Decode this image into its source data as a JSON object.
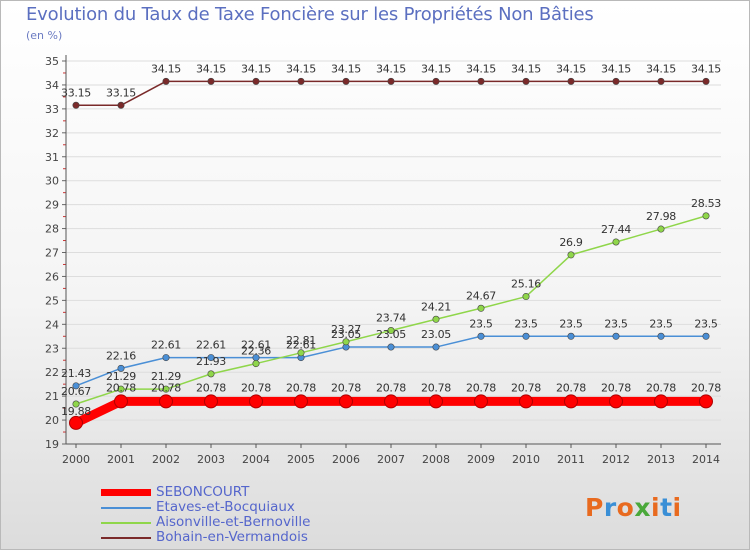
{
  "title": "Evolution du Taux de Taxe Foncière sur les Propriétés Non Bâties",
  "unit_label": "(en %)",
  "logo_text": "Proxiti",
  "colors": {
    "title": "#5b6fc0",
    "axis": "#6b7bc2",
    "grid": "#dddddd",
    "logo": [
      "#e86a1f",
      "#3a8fd6",
      "#e86a1f",
      "#4aa83a",
      "#e86a1f",
      "#3a8fd6",
      "#e86a1f"
    ]
  },
  "chart_data": {
    "type": "line",
    "x": [
      "2000",
      "2001",
      "2002",
      "2003",
      "2004",
      "2005",
      "2006",
      "2007",
      "2008",
      "2009",
      "2010",
      "2011",
      "2012",
      "2013",
      "2014"
    ],
    "ylim": [
      19,
      35
    ],
    "yticks": [
      "19",
      "20",
      "21",
      "22",
      "23",
      "24",
      "25",
      "26",
      "27",
      "28",
      "29",
      "30",
      "31",
      "32",
      "33",
      "34",
      "35"
    ],
    "grid": "horizontal",
    "legend": "bottom-left",
    "series": [
      {
        "name": "SEBONCOURT",
        "color": "#ff0000",
        "values": [
          19.88,
          20.78,
          20.78,
          20.78,
          20.78,
          20.78,
          20.78,
          20.78,
          20.78,
          20.78,
          20.78,
          20.78,
          20.78,
          20.78,
          20.78
        ],
        "labels": [
          "19.88",
          "20.78",
          "20.78",
          "20.78",
          "20.78",
          "20.78",
          "20.78",
          "20.78",
          "20.78",
          "20.78",
          "20.78",
          "20.78",
          "20.78",
          "20.78",
          "20.78"
        ]
      },
      {
        "name": "Etaves-et-Bocquiaux",
        "color": "#4a8fd6",
        "values": [
          21.43,
          22.16,
          22.61,
          22.61,
          22.61,
          22.61,
          23.05,
          23.05,
          23.05,
          23.5,
          23.5,
          23.5,
          23.5,
          23.5,
          23.5
        ],
        "labels": [
          "21.43",
          "22.16",
          "22.61",
          "22.61",
          "22.61",
          "22.61",
          "23.05",
          "23.05",
          "23.05",
          "23.5",
          "23.5",
          "23.5",
          "23.5",
          "23.5",
          "23.5"
        ]
      },
      {
        "name": "Aisonville-et-Bernoville",
        "color": "#8fd64a",
        "values": [
          20.67,
          21.29,
          21.29,
          21.93,
          22.36,
          22.81,
          23.27,
          23.74,
          24.21,
          24.67,
          25.16,
          26.9,
          27.44,
          27.98,
          28.53
        ],
        "labels": [
          "20.67",
          "21.29",
          "21.29",
          "21.93",
          "22.36",
          "22.81",
          "23.27",
          "23.74",
          "24.21",
          "24.67",
          "25.16",
          "26.9",
          "27.44",
          "27.98",
          "28.53"
        ]
      },
      {
        "name": "Bohain-en-Vermandois",
        "color": "#7a2a2a",
        "values": [
          33.15,
          33.15,
          34.15,
          34.15,
          34.15,
          34.15,
          34.15,
          34.15,
          34.15,
          34.15,
          34.15,
          34.15,
          34.15,
          34.15,
          34.15
        ],
        "labels": [
          "33.15",
          "33.15",
          "34.15",
          "34.15",
          "34.15",
          "34.15",
          "34.15",
          "34.15",
          "34.15",
          "34.15",
          "34.15",
          "34.15",
          "34.15",
          "34.15",
          "34.15"
        ]
      }
    ]
  }
}
